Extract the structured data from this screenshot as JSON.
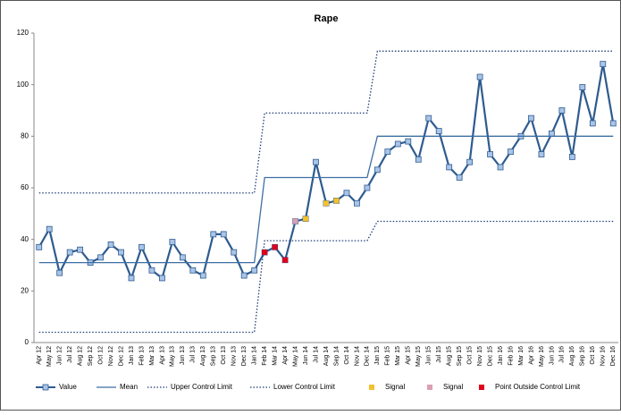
{
  "chart_data": {
    "type": "line",
    "title": "Rape",
    "categories": [
      "Apr 12",
      "May 12",
      "Jun 12",
      "Jul 12",
      "Aug 12",
      "Sep 12",
      "Oct 12",
      "Nov 12",
      "Dec 12",
      "Jan 13",
      "Feb 13",
      "Mar 13",
      "Apr 13",
      "May 13",
      "Jun 13",
      "Jul 13",
      "Aug 13",
      "Sep 13",
      "Oct 13",
      "Nov 13",
      "Dec 13",
      "Jan 14",
      "Feb 14",
      "Mar 14",
      "Apr 14",
      "May 14",
      "Jun 14",
      "Jul 14",
      "Aug 14",
      "Sep 14",
      "Oct 14",
      "Nov 14",
      "Dec 14",
      "Jan 15",
      "Feb 15",
      "Mar 15",
      "Apr 15",
      "May 15",
      "Jun 15",
      "Jul 15",
      "Aug 15",
      "Sep 15",
      "Oct 15",
      "Nov 15",
      "Dec 15",
      "Jan 16",
      "Feb 16",
      "Mar 16",
      "Apr 16",
      "May 16",
      "Jun 16",
      "Jul 16",
      "Aug 16",
      "Sep 16",
      "Oct 16",
      "Nov 16",
      "Dec 16"
    ],
    "series": [
      {
        "name": "Value",
        "color": "#2e5b8f",
        "line": "solid",
        "marker": "square",
        "marker_color": "#a9c4e8",
        "values": [
          37,
          44,
          27,
          35,
          36,
          31,
          33,
          38,
          35,
          25,
          37,
          28,
          25,
          39,
          33,
          28,
          26,
          42,
          42,
          35,
          26,
          28,
          35,
          37,
          32,
          47,
          48,
          70,
          54,
          55,
          58,
          54,
          60,
          67,
          74,
          77,
          78,
          71,
          87,
          82,
          68,
          64,
          70,
          103,
          73,
          68,
          74,
          80,
          87,
          73,
          81,
          90,
          72,
          99,
          85,
          108,
          85
        ]
      },
      {
        "name": "Mean",
        "color": "#3d6fa3",
        "line": "solid",
        "values": [
          31,
          31,
          31,
          31,
          31,
          31,
          31,
          31,
          31,
          31,
          31,
          31,
          31,
          31,
          31,
          31,
          31,
          31,
          31,
          31,
          31,
          31,
          64,
          64,
          64,
          64,
          64,
          64,
          64,
          64,
          64,
          64,
          64,
          80,
          80,
          80,
          80,
          80,
          80,
          80,
          80,
          80,
          80,
          80,
          80,
          80,
          80,
          80,
          80,
          80,
          80,
          80,
          80,
          80,
          80,
          80,
          80
        ]
      },
      {
        "name": "Upper Control Limit",
        "color": "#1f3d78",
        "line": "dotted",
        "values": [
          58,
          58,
          58,
          58,
          58,
          58,
          58,
          58,
          58,
          58,
          58,
          58,
          58,
          58,
          58,
          58,
          58,
          58,
          58,
          58,
          58,
          58,
          89,
          89,
          89,
          89,
          89,
          89,
          89,
          89,
          89,
          89,
          89,
          113,
          113,
          113,
          113,
          113,
          113,
          113,
          113,
          113,
          113,
          113,
          113,
          113,
          113,
          113,
          113,
          113,
          113,
          113,
          113,
          113,
          113,
          113,
          113
        ]
      },
      {
        "name": "Lower Control Limit",
        "color": "#1f3d78",
        "line": "dotted",
        "values": [
          4,
          4,
          4,
          4,
          4,
          4,
          4,
          4,
          4,
          4,
          4,
          4,
          4,
          4,
          4,
          4,
          4,
          4,
          4,
          4,
          4,
          4,
          39.5,
          39.5,
          39.5,
          39.5,
          39.5,
          39.5,
          39.5,
          39.5,
          39.5,
          39.5,
          39.5,
          47,
          47,
          47,
          47,
          47,
          47,
          47,
          47,
          47,
          47,
          47,
          47,
          47,
          47,
          47,
          47,
          47,
          47,
          47,
          47,
          47,
          47,
          47,
          47
        ]
      },
      {
        "name": "Signal",
        "color": "#f2c12e",
        "marker": "square",
        "values": [
          null,
          null,
          null,
          null,
          null,
          null,
          null,
          null,
          null,
          null,
          null,
          null,
          null,
          null,
          null,
          null,
          null,
          null,
          null,
          null,
          null,
          null,
          null,
          null,
          null,
          null,
          48,
          null,
          54,
          55,
          null,
          null,
          null,
          null,
          null,
          null,
          null,
          null,
          null,
          null,
          null,
          null,
          null,
          null,
          null,
          null,
          null,
          null,
          null,
          null,
          null,
          null,
          null,
          null,
          null,
          null,
          null
        ]
      },
      {
        "name": "Signal",
        "color": "#d9a0b4",
        "marker": "square",
        "values": [
          null,
          null,
          null,
          null,
          null,
          null,
          null,
          null,
          null,
          null,
          null,
          null,
          null,
          null,
          null,
          null,
          null,
          null,
          null,
          null,
          null,
          null,
          null,
          null,
          null,
          47,
          null,
          null,
          null,
          null,
          null,
          null,
          null,
          null,
          null,
          null,
          null,
          null,
          null,
          null,
          null,
          null,
          null,
          null,
          null,
          null,
          null,
          null,
          null,
          null,
          null,
          null,
          null,
          null,
          null,
          null,
          null
        ]
      },
      {
        "name": "Point Outside Control Limit",
        "color": "#e0001b",
        "marker": "square",
        "values": [
          null,
          null,
          null,
          null,
          null,
          null,
          null,
          null,
          null,
          null,
          null,
          null,
          null,
          null,
          null,
          null,
          null,
          null,
          null,
          null,
          null,
          null,
          35,
          37,
          32,
          null,
          null,
          null,
          null,
          null,
          null,
          null,
          null,
          null,
          null,
          null,
          null,
          null,
          null,
          null,
          null,
          null,
          null,
          null,
          null,
          null,
          null,
          null,
          null,
          null,
          null,
          null,
          null,
          null,
          null,
          null,
          null
        ]
      }
    ],
    "ylim": [
      0,
      120
    ],
    "yticks": [
      0,
      20,
      40,
      60,
      80,
      100,
      120
    ],
    "legend": "bottom"
  }
}
